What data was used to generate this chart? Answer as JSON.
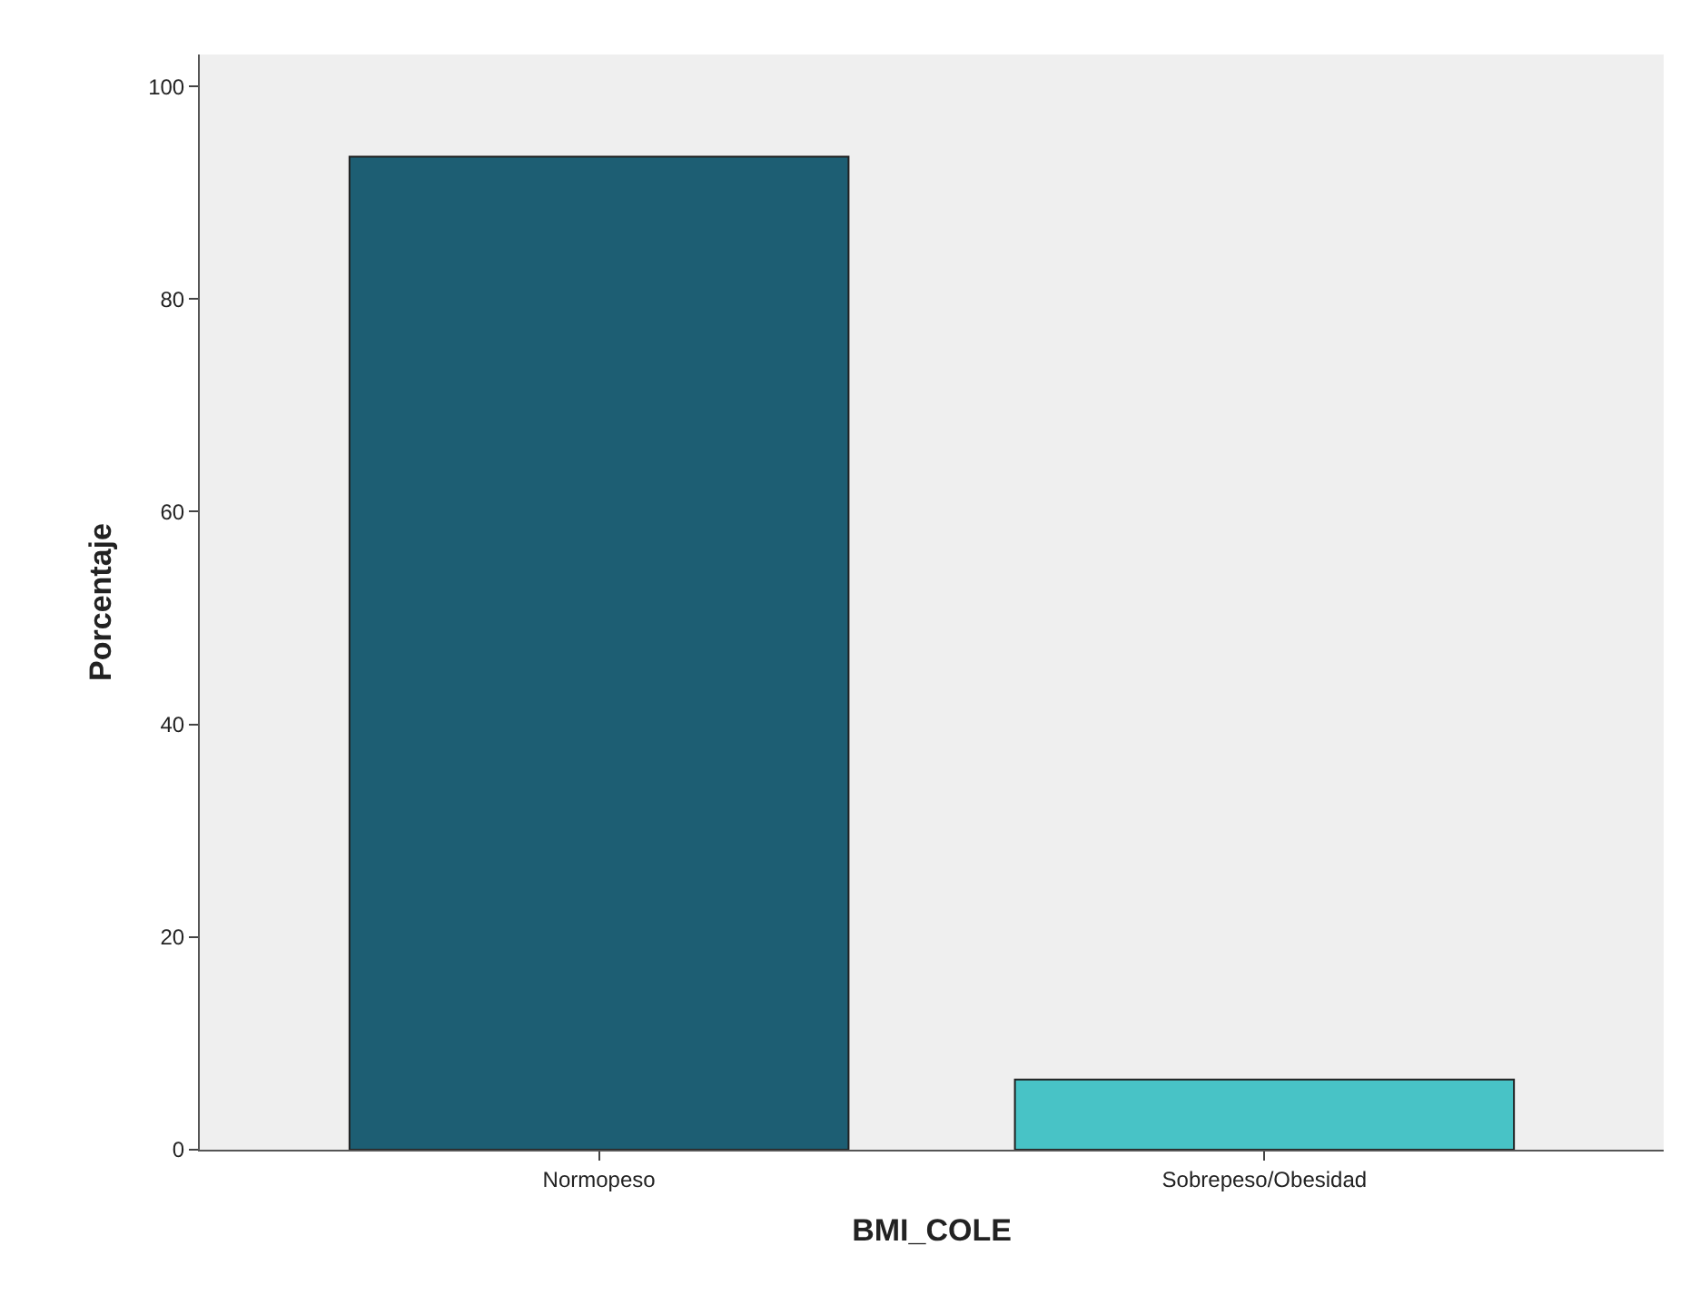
{
  "chart_data": {
    "type": "bar",
    "xlabel": "BMI_COLE",
    "ylabel": "Porcentaje",
    "categories": [
      "Normopeso",
      "Sobrepeso/Obesidad"
    ],
    "values": [
      93.4,
      6.6
    ],
    "colors": [
      "#1d5e73",
      "#48c3c6"
    ],
    "ylim": [
      0,
      103
    ],
    "yticks": [
      0,
      20,
      40,
      60,
      80,
      100
    ],
    "grid": false
  }
}
